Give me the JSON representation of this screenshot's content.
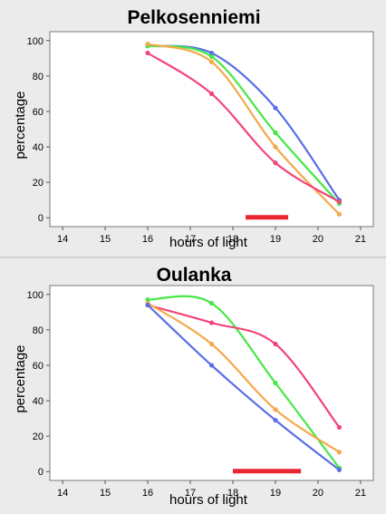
{
  "chart_data": [
    {
      "type": "line",
      "title": "Pelkosenniemi",
      "xlabel": "hours of light",
      "ylabel": "percentage",
      "xlim": [
        13.7,
        21.3
      ],
      "ylim": [
        -5,
        105
      ],
      "x_ticks": [
        "14",
        "15",
        "16",
        "17",
        "18",
        "19",
        "20",
        "21"
      ],
      "y_ticks": [
        "0",
        "20",
        "40",
        "60",
        "80",
        "100"
      ],
      "highlight_range": [
        18.3,
        19.3
      ],
      "highlight_color": "#e8262f",
      "series": [
        {
          "color": "#5a6ee8",
          "points": [
            [
              16,
              97
            ],
            [
              17.5,
              93
            ],
            [
              19,
              62
            ],
            [
              20.5,
              10
            ]
          ]
        },
        {
          "color": "#44e844",
          "points": [
            [
              16,
              97
            ],
            [
              17.5,
              91
            ],
            [
              19,
              48
            ],
            [
              20.5,
              8
            ]
          ]
        },
        {
          "color": "#f5a84a",
          "points": [
            [
              16,
              98
            ],
            [
              17.5,
              88
            ],
            [
              19,
              40
            ],
            [
              20.5,
              2
            ]
          ]
        },
        {
          "color": "#f2457a",
          "points": [
            [
              16,
              93
            ],
            [
              17.5,
              70
            ],
            [
              19,
              31
            ],
            [
              20.5,
              9
            ]
          ]
        }
      ]
    },
    {
      "type": "line",
      "title": "Oulanka",
      "xlabel": "hours of light",
      "ylabel": "percentage",
      "xlim": [
        13.7,
        21.3
      ],
      "ylim": [
        -5,
        105
      ],
      "x_ticks": [
        "14",
        "15",
        "16",
        "17",
        "18",
        "19",
        "20",
        "21"
      ],
      "y_ticks": [
        "0",
        "20",
        "40",
        "60",
        "80",
        "100"
      ],
      "highlight_range": [
        18,
        19.6
      ],
      "highlight_color": "#e8262f",
      "series": [
        {
          "color": "#44e844",
          "points": [
            [
              16,
              97
            ],
            [
              17.5,
              95
            ],
            [
              19,
              50
            ],
            [
              20.5,
              2
            ]
          ]
        },
        {
          "color": "#f2457a",
          "points": [
            [
              16,
              94
            ],
            [
              17.5,
              84
            ],
            [
              19,
              72
            ],
            [
              20.5,
              25
            ]
          ]
        },
        {
          "color": "#f5a84a",
          "points": [
            [
              16,
              95
            ],
            [
              17.5,
              72
            ],
            [
              19,
              35
            ],
            [
              20.5,
              11
            ]
          ]
        },
        {
          "color": "#5a6ee8",
          "points": [
            [
              16,
              94
            ],
            [
              17.5,
              60
            ],
            [
              19,
              29
            ],
            [
              20.5,
              1
            ]
          ]
        }
      ]
    }
  ]
}
